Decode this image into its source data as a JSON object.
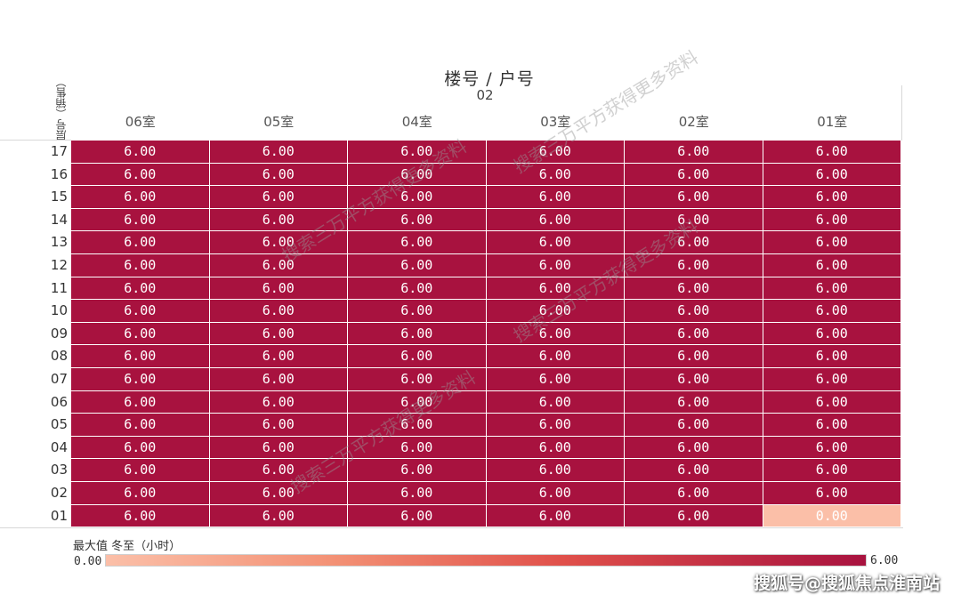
{
  "chart_data": {
    "type": "heatmap",
    "title": "楼号  /  户号",
    "subtitle": "02",
    "ylabel": "层号（销售）",
    "columns": [
      "06室",
      "05室",
      "04室",
      "03室",
      "02室",
      "01室"
    ],
    "rows": [
      "17",
      "16",
      "15",
      "14",
      "13",
      "12",
      "11",
      "10",
      "09",
      "08",
      "07",
      "06",
      "05",
      "04",
      "03",
      "02",
      "01"
    ],
    "values": [
      [
        6.0,
        6.0,
        6.0,
        6.0,
        6.0,
        6.0
      ],
      [
        6.0,
        6.0,
        6.0,
        6.0,
        6.0,
        6.0
      ],
      [
        6.0,
        6.0,
        6.0,
        6.0,
        6.0,
        6.0
      ],
      [
        6.0,
        6.0,
        6.0,
        6.0,
        6.0,
        6.0
      ],
      [
        6.0,
        6.0,
        6.0,
        6.0,
        6.0,
        6.0
      ],
      [
        6.0,
        6.0,
        6.0,
        6.0,
        6.0,
        6.0
      ],
      [
        6.0,
        6.0,
        6.0,
        6.0,
        6.0,
        6.0
      ],
      [
        6.0,
        6.0,
        6.0,
        6.0,
        6.0,
        6.0
      ],
      [
        6.0,
        6.0,
        6.0,
        6.0,
        6.0,
        6.0
      ],
      [
        6.0,
        6.0,
        6.0,
        6.0,
        6.0,
        6.0
      ],
      [
        6.0,
        6.0,
        6.0,
        6.0,
        6.0,
        6.0
      ],
      [
        6.0,
        6.0,
        6.0,
        6.0,
        6.0,
        6.0
      ],
      [
        6.0,
        6.0,
        6.0,
        6.0,
        6.0,
        6.0
      ],
      [
        6.0,
        6.0,
        6.0,
        6.0,
        6.0,
        6.0
      ],
      [
        6.0,
        6.0,
        6.0,
        6.0,
        6.0,
        6.0
      ],
      [
        6.0,
        6.0,
        6.0,
        6.0,
        6.0,
        6.0
      ],
      [
        6.0,
        6.0,
        6.0,
        6.0,
        6.0,
        0.0
      ]
    ],
    "legend": {
      "title": "最大值 冬至（小时）",
      "min_label": "0.00",
      "max_label": "6.00",
      "min": 0,
      "max": 6,
      "colors": [
        "#fbbfa8",
        "#a8123f"
      ]
    }
  },
  "watermark_text": "搜索三万平方获得更多资料",
  "footer_text": "搜狐号@搜狐焦点淮南站"
}
